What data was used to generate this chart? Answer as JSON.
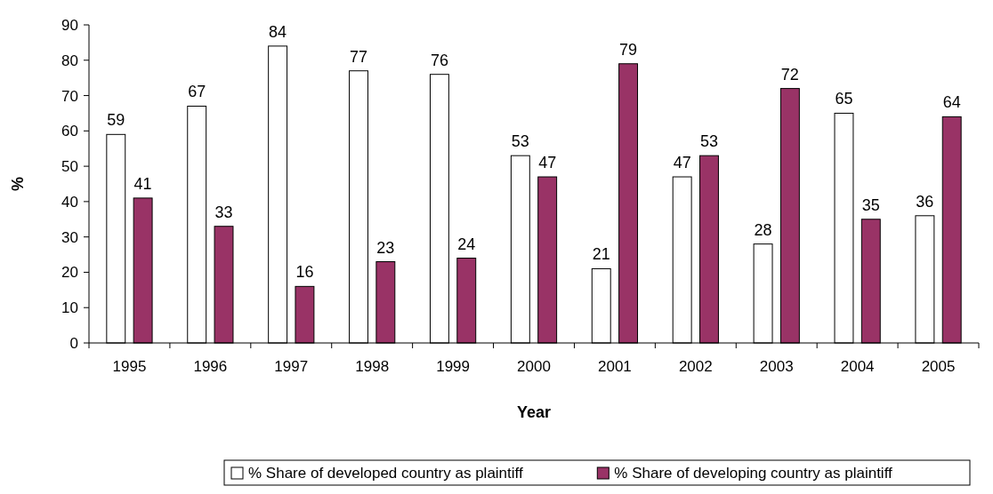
{
  "chart_data": {
    "type": "bar",
    "xlabel": "Year",
    "ylabel": "%",
    "categories": [
      "1995",
      "1996",
      "1997",
      "1998",
      "1999",
      "2000",
      "2001",
      "2002",
      "2003",
      "2004",
      "2005"
    ],
    "series": [
      {
        "name": "% Share of developed country as plaintiff",
        "color": "#ffffff",
        "values": [
          59,
          67,
          84,
          77,
          76,
          53,
          21,
          47,
          28,
          65,
          36
        ]
      },
      {
        "name": "% Share of developing country as plaintiff",
        "color": "#993366",
        "values": [
          41,
          33,
          16,
          23,
          24,
          47,
          79,
          53,
          72,
          35,
          64
        ]
      }
    ],
    "ylim": [
      0,
      90
    ],
    "yticks": [
      0,
      10,
      20,
      30,
      40,
      50,
      60,
      70,
      80,
      90
    ],
    "data_labels": true,
    "legend": "bottom",
    "grid": false
  }
}
